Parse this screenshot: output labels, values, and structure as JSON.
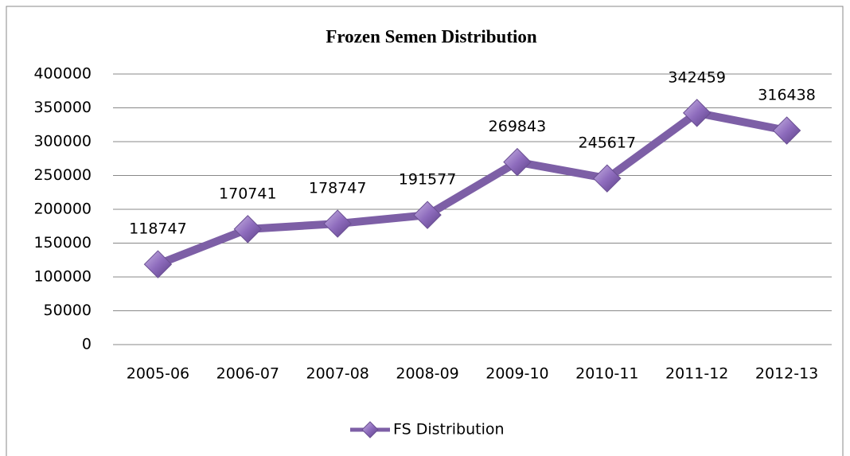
{
  "chart_data": {
    "type": "line",
    "title": "Frozen Semen Distribution",
    "categories": [
      "2005-06",
      "2006-07",
      "2007-08",
      "2008-09",
      "2009-10",
      "2010-11",
      "2011-12",
      "2012-13"
    ],
    "series": [
      {
        "name": "FS Distribution",
        "color": "#7d5fa6",
        "values": [
          118747,
          170741,
          178747,
          191577,
          269843,
          245617,
          342459,
          316438
        ]
      }
    ],
    "ylim": [
      0,
      400000
    ],
    "yticks": [
      0,
      50000,
      100000,
      150000,
      200000,
      250000,
      300000,
      350000,
      400000
    ],
    "grid": true,
    "legend": "bottom"
  }
}
